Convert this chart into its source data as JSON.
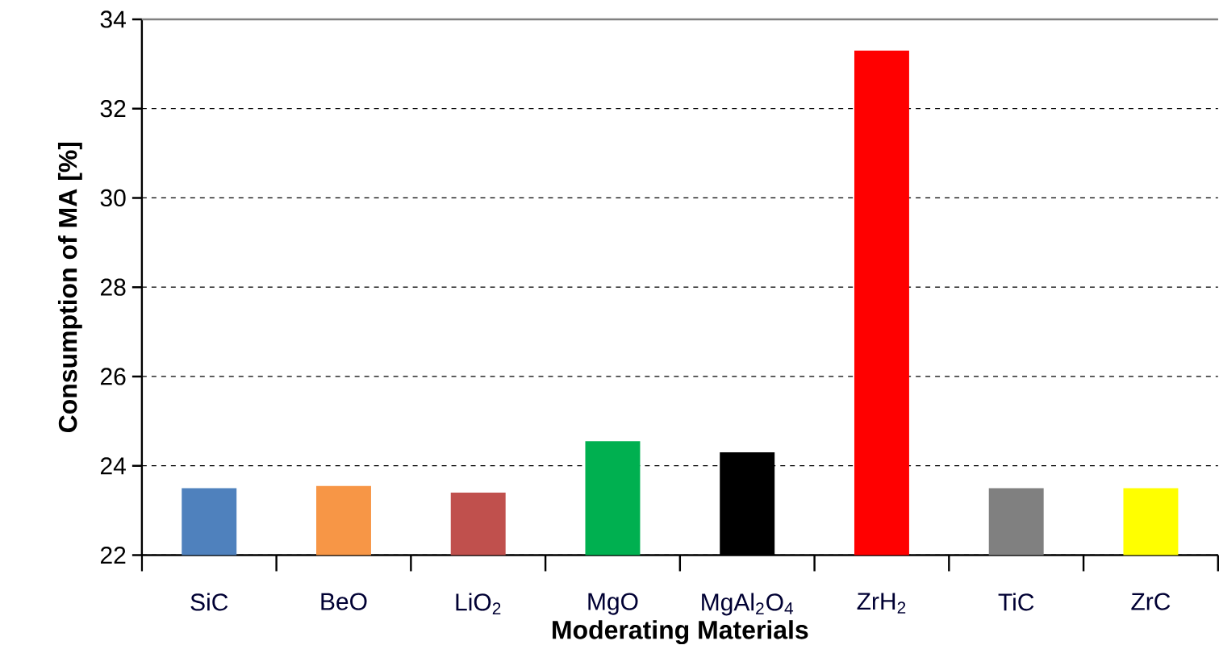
{
  "chart_data": {
    "type": "bar",
    "xlabel": "Moderating Materials",
    "ylabel": "Consumption of MA [%]",
    "categories": [
      "SiC",
      "BeO",
      "LiO$_{2}$",
      "MgO",
      "MgAl$_{2}$O$_{4}$",
      "ZrH$_{2}$",
      "TiC",
      "ZrC"
    ],
    "values": [
      23.5,
      23.55,
      23.4,
      24.55,
      24.3,
      33.3,
      23.5,
      23.5
    ],
    "colors": [
      "#4f81bd",
      "#f79646",
      "#c0504d",
      "#00b050",
      "#000000",
      "#ff0000",
      "#808080",
      "#ffff00"
    ],
    "ylim": [
      22,
      34
    ],
    "yticks": [
      22,
      24,
      26,
      28,
      30,
      32,
      34
    ],
    "grid": "y"
  }
}
